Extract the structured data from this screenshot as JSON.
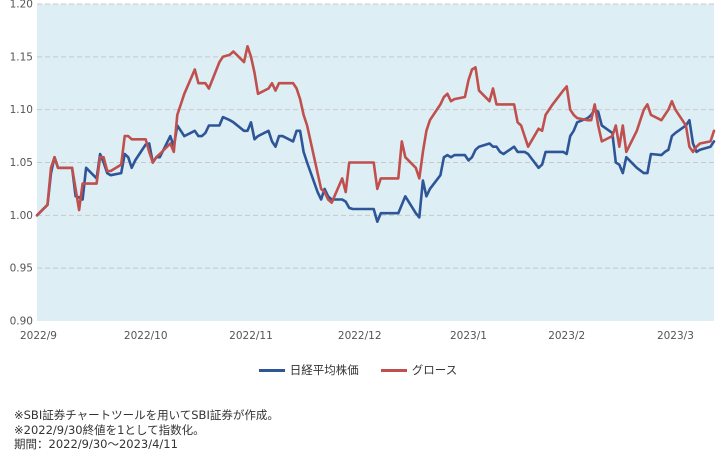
{
  "chart_data": {
    "type": "line",
    "ylim": [
      0.9,
      1.2
    ],
    "y_ticks": [
      "0.90",
      "0.95",
      "1.00",
      "1.05",
      "1.10",
      "1.15",
      "1.20"
    ],
    "x_tick_labels": [
      "2022/9",
      "2022/10",
      "2022/11",
      "2022/12",
      "2023/1",
      "2023/2",
      "2023/3"
    ],
    "x_range": [
      "2022-09-30",
      "2023-04-11"
    ],
    "x_ticks": [
      "2022-09-30",
      "2022-10-31",
      "2022-11-30",
      "2022-12-31",
      "2023-01-31",
      "2023-02-28",
      "2023-03-31"
    ],
    "grid": "horizontal dashed",
    "background": "#ddeef5",
    "legend_position": "bottom",
    "series": [
      {
        "name": "日経平均株価",
        "color": "#2e5597",
        "values": [
          [
            "2022-09-30",
            1.0
          ],
          [
            "2022-10-03",
            1.01
          ],
          [
            "2022-10-04",
            1.04
          ],
          [
            "2022-10-05",
            1.055
          ],
          [
            "2022-10-06",
            1.045
          ],
          [
            "2022-10-07",
            1.045
          ],
          [
            "2022-10-10",
            1.045
          ],
          [
            "2022-10-11",
            1.018
          ],
          [
            "2022-10-12",
            1.017
          ],
          [
            "2022-10-13",
            1.015
          ],
          [
            "2022-10-14",
            1.045
          ],
          [
            "2022-10-17",
            1.035
          ],
          [
            "2022-10-18",
            1.058
          ],
          [
            "2022-10-19",
            1.05
          ],
          [
            "2022-10-20",
            1.04
          ],
          [
            "2022-10-21",
            1.038
          ],
          [
            "2022-10-24",
            1.04
          ],
          [
            "2022-10-25",
            1.058
          ],
          [
            "2022-10-26",
            1.055
          ],
          [
            "2022-10-27",
            1.045
          ],
          [
            "2022-10-28",
            1.052
          ],
          [
            "2022-10-31",
            1.067
          ],
          [
            "2022-11-01",
            1.068
          ],
          [
            "2022-11-02",
            1.05
          ],
          [
            "2022-11-03",
            1.055
          ],
          [
            "2022-11-04",
            1.055
          ],
          [
            "2022-11-07",
            1.075
          ],
          [
            "2022-11-08",
            1.065
          ],
          [
            "2022-11-09",
            1.085
          ],
          [
            "2022-11-10",
            1.08
          ],
          [
            "2022-11-11",
            1.075
          ],
          [
            "2022-11-14",
            1.08
          ],
          [
            "2022-11-15",
            1.075
          ],
          [
            "2022-11-16",
            1.075
          ],
          [
            "2022-11-17",
            1.078
          ],
          [
            "2022-11-18",
            1.085
          ],
          [
            "2022-11-21",
            1.085
          ],
          [
            "2022-11-22",
            1.093
          ],
          [
            "2022-11-24",
            1.09
          ],
          [
            "2022-11-25",
            1.088
          ],
          [
            "2022-11-28",
            1.08
          ],
          [
            "2022-11-29",
            1.08
          ],
          [
            "2022-11-30",
            1.088
          ],
          [
            "2022-12-01",
            1.072
          ],
          [
            "2022-12-02",
            1.075
          ],
          [
            "2022-12-05",
            1.08
          ],
          [
            "2022-12-06",
            1.07
          ],
          [
            "2022-12-07",
            1.065
          ],
          [
            "2022-12-08",
            1.075
          ],
          [
            "2022-12-09",
            1.075
          ],
          [
            "2022-12-12",
            1.07
          ],
          [
            "2022-12-13",
            1.08
          ],
          [
            "2022-12-14",
            1.08
          ],
          [
            "2022-12-15",
            1.06
          ],
          [
            "2022-12-16",
            1.05
          ],
          [
            "2022-12-19",
            1.022
          ],
          [
            "2022-12-20",
            1.015
          ],
          [
            "2022-12-21",
            1.025
          ],
          [
            "2022-12-22",
            1.018
          ],
          [
            "2022-12-23",
            1.015
          ],
          [
            "2022-12-26",
            1.015
          ],
          [
            "2022-12-27",
            1.013
          ],
          [
            "2022-12-28",
            1.007
          ],
          [
            "2022-12-29",
            1.006
          ],
          [
            "2022-12-30",
            1.006
          ],
          [
            "2023-01-04",
            1.006
          ],
          [
            "2023-01-05",
            0.994
          ],
          [
            "2023-01-06",
            1.002
          ],
          [
            "2023-01-10",
            1.002
          ],
          [
            "2023-01-11",
            1.002
          ],
          [
            "2023-01-12",
            1.01
          ],
          [
            "2023-01-13",
            1.018
          ],
          [
            "2023-01-16",
            1.002
          ],
          [
            "2023-01-17",
            0.998
          ],
          [
            "2023-01-18",
            1.033
          ],
          [
            "2023-01-19",
            1.018
          ],
          [
            "2023-01-20",
            1.025
          ],
          [
            "2023-01-23",
            1.038
          ],
          [
            "2023-01-24",
            1.055
          ],
          [
            "2023-01-25",
            1.057
          ],
          [
            "2023-01-26",
            1.055
          ],
          [
            "2023-01-27",
            1.057
          ],
          [
            "2023-01-30",
            1.057
          ],
          [
            "2023-01-31",
            1.052
          ],
          [
            "2023-02-01",
            1.055
          ],
          [
            "2023-02-02",
            1.062
          ],
          [
            "2023-02-03",
            1.065
          ],
          [
            "2023-02-06",
            1.068
          ],
          [
            "2023-02-07",
            1.065
          ],
          [
            "2023-02-08",
            1.065
          ],
          [
            "2023-02-09",
            1.06
          ],
          [
            "2023-02-10",
            1.058
          ],
          [
            "2023-02-13",
            1.065
          ],
          [
            "2023-02-14",
            1.06
          ],
          [
            "2023-02-15",
            1.06
          ],
          [
            "2023-02-16",
            1.06
          ],
          [
            "2023-02-17",
            1.058
          ],
          [
            "2023-02-20",
            1.045
          ],
          [
            "2023-02-21",
            1.048
          ],
          [
            "2023-02-22",
            1.06
          ],
          [
            "2023-02-24",
            1.06
          ],
          [
            "2023-02-27",
            1.06
          ],
          [
            "2023-02-28",
            1.058
          ],
          [
            "2023-03-01",
            1.075
          ],
          [
            "2023-03-02",
            1.08
          ],
          [
            "2023-03-03",
            1.088
          ],
          [
            "2023-03-06",
            1.092
          ],
          [
            "2023-03-07",
            1.095
          ],
          [
            "2023-03-08",
            1.1
          ],
          [
            "2023-03-09",
            1.098
          ],
          [
            "2023-03-10",
            1.085
          ],
          [
            "2023-03-13",
            1.078
          ],
          [
            "2023-03-14",
            1.05
          ],
          [
            "2023-03-15",
            1.048
          ],
          [
            "2023-03-16",
            1.04
          ],
          [
            "2023-03-17",
            1.055
          ],
          [
            "2023-03-20",
            1.045
          ],
          [
            "2023-03-22",
            1.04
          ],
          [
            "2023-03-23",
            1.04
          ],
          [
            "2023-03-24",
            1.058
          ],
          [
            "2023-03-27",
            1.057
          ],
          [
            "2023-03-28",
            1.06
          ],
          [
            "2023-03-29",
            1.062
          ],
          [
            "2023-03-30",
            1.075
          ],
          [
            "2023-03-31",
            1.078
          ],
          [
            "2023-04-03",
            1.085
          ],
          [
            "2023-04-04",
            1.09
          ],
          [
            "2023-04-05",
            1.068
          ],
          [
            "2023-04-06",
            1.06
          ],
          [
            "2023-04-07",
            1.062
          ],
          [
            "2023-04-10",
            1.065
          ],
          [
            "2023-04-11",
            1.07
          ]
        ]
      },
      {
        "name": "グロース",
        "color": "#c0504d",
        "values": [
          [
            "2022-09-30",
            1.0
          ],
          [
            "2022-10-03",
            1.01
          ],
          [
            "2022-10-04",
            1.045
          ],
          [
            "2022-10-05",
            1.055
          ],
          [
            "2022-10-06",
            1.045
          ],
          [
            "2022-10-07",
            1.045
          ],
          [
            "2022-10-10",
            1.045
          ],
          [
            "2022-10-11",
            1.025
          ],
          [
            "2022-10-12",
            1.005
          ],
          [
            "2022-10-13",
            1.03
          ],
          [
            "2022-10-14",
            1.03
          ],
          [
            "2022-10-17",
            1.03
          ],
          [
            "2022-10-18",
            1.055
          ],
          [
            "2022-10-19",
            1.055
          ],
          [
            "2022-10-20",
            1.042
          ],
          [
            "2022-10-21",
            1.042
          ],
          [
            "2022-10-24",
            1.048
          ],
          [
            "2022-10-25",
            1.075
          ],
          [
            "2022-10-26",
            1.075
          ],
          [
            "2022-10-27",
            1.072
          ],
          [
            "2022-10-28",
            1.072
          ],
          [
            "2022-10-31",
            1.072
          ],
          [
            "2022-11-01",
            1.06
          ],
          [
            "2022-11-02",
            1.05
          ],
          [
            "2022-11-03",
            1.055
          ],
          [
            "2022-11-04",
            1.058
          ],
          [
            "2022-11-07",
            1.068
          ],
          [
            "2022-11-08",
            1.06
          ],
          [
            "2022-11-09",
            1.095
          ],
          [
            "2022-11-10",
            1.105
          ],
          [
            "2022-11-11",
            1.115
          ],
          [
            "2022-11-14",
            1.138
          ],
          [
            "2022-11-15",
            1.125
          ],
          [
            "2022-11-16",
            1.125
          ],
          [
            "2022-11-17",
            1.125
          ],
          [
            "2022-11-18",
            1.12
          ],
          [
            "2022-11-21",
            1.145
          ],
          [
            "2022-11-22",
            1.15
          ],
          [
            "2022-11-24",
            1.152
          ],
          [
            "2022-11-25",
            1.155
          ],
          [
            "2022-11-28",
            1.145
          ],
          [
            "2022-11-29",
            1.16
          ],
          [
            "2022-11-30",
            1.15
          ],
          [
            "2022-12-01",
            1.135
          ],
          [
            "2022-12-02",
            1.115
          ],
          [
            "2022-12-05",
            1.12
          ],
          [
            "2022-12-06",
            1.125
          ],
          [
            "2022-12-07",
            1.118
          ],
          [
            "2022-12-08",
            1.125
          ],
          [
            "2022-12-09",
            1.125
          ],
          [
            "2022-12-12",
            1.125
          ],
          [
            "2022-12-13",
            1.12
          ],
          [
            "2022-12-14",
            1.11
          ],
          [
            "2022-12-15",
            1.095
          ],
          [
            "2022-12-16",
            1.085
          ],
          [
            "2022-12-19",
            1.04
          ],
          [
            "2022-12-20",
            1.025
          ],
          [
            "2022-12-21",
            1.022
          ],
          [
            "2022-12-22",
            1.015
          ],
          [
            "2022-12-23",
            1.012
          ],
          [
            "2022-12-26",
            1.035
          ],
          [
            "2022-12-27",
            1.022
          ],
          [
            "2022-12-28",
            1.05
          ],
          [
            "2022-12-29",
            1.05
          ],
          [
            "2022-12-30",
            1.05
          ],
          [
            "2023-01-04",
            1.05
          ],
          [
            "2023-01-05",
            1.025
          ],
          [
            "2023-01-06",
            1.035
          ],
          [
            "2023-01-10",
            1.035
          ],
          [
            "2023-01-11",
            1.035
          ],
          [
            "2023-01-12",
            1.07
          ],
          [
            "2023-01-13",
            1.055
          ],
          [
            "2023-01-16",
            1.045
          ],
          [
            "2023-01-17",
            1.035
          ],
          [
            "2023-01-18",
            1.06
          ],
          [
            "2023-01-19",
            1.08
          ],
          [
            "2023-01-20",
            1.09
          ],
          [
            "2023-01-23",
            1.105
          ],
          [
            "2023-01-24",
            1.112
          ],
          [
            "2023-01-25",
            1.115
          ],
          [
            "2023-01-26",
            1.108
          ],
          [
            "2023-01-27",
            1.11
          ],
          [
            "2023-01-30",
            1.112
          ],
          [
            "2023-01-31",
            1.128
          ],
          [
            "2023-02-01",
            1.138
          ],
          [
            "2023-02-02",
            1.14
          ],
          [
            "2023-02-03",
            1.118
          ],
          [
            "2023-02-06",
            1.108
          ],
          [
            "2023-02-07",
            1.12
          ],
          [
            "2023-02-08",
            1.105
          ],
          [
            "2023-02-09",
            1.105
          ],
          [
            "2023-02-10",
            1.105
          ],
          [
            "2023-02-13",
            1.105
          ],
          [
            "2023-02-14",
            1.088
          ],
          [
            "2023-02-15",
            1.085
          ],
          [
            "2023-02-16",
            1.075
          ],
          [
            "2023-02-17",
            1.065
          ],
          [
            "2023-02-20",
            1.082
          ],
          [
            "2023-02-21",
            1.08
          ],
          [
            "2023-02-22",
            1.095
          ],
          [
            "2023-02-24",
            1.105
          ],
          [
            "2023-02-27",
            1.118
          ],
          [
            "2023-02-28",
            1.122
          ],
          [
            "2023-03-01",
            1.1
          ],
          [
            "2023-03-02",
            1.095
          ],
          [
            "2023-03-03",
            1.092
          ],
          [
            "2023-03-06",
            1.09
          ],
          [
            "2023-03-07",
            1.09
          ],
          [
            "2023-03-08",
            1.105
          ],
          [
            "2023-03-09",
            1.085
          ],
          [
            "2023-03-10",
            1.07
          ],
          [
            "2023-03-13",
            1.075
          ],
          [
            "2023-03-14",
            1.085
          ],
          [
            "2023-03-15",
            1.065
          ],
          [
            "2023-03-16",
            1.085
          ],
          [
            "2023-03-17",
            1.06
          ],
          [
            "2023-03-20",
            1.08
          ],
          [
            "2023-03-22",
            1.1
          ],
          [
            "2023-03-23",
            1.105
          ],
          [
            "2023-03-24",
            1.095
          ],
          [
            "2023-03-27",
            1.09
          ],
          [
            "2023-03-28",
            1.095
          ],
          [
            "2023-03-29",
            1.1
          ],
          [
            "2023-03-30",
            1.108
          ],
          [
            "2023-03-31",
            1.1
          ],
          [
            "2023-04-03",
            1.085
          ],
          [
            "2023-04-04",
            1.065
          ],
          [
            "2023-04-05",
            1.06
          ],
          [
            "2023-04-06",
            1.065
          ],
          [
            "2023-04-07",
            1.068
          ],
          [
            "2023-04-10",
            1.07
          ],
          [
            "2023-04-11",
            1.08
          ]
        ]
      }
    ]
  },
  "notes": [
    "※SBI証券チャートツールを用いてSBI証券が作成。",
    "※2022/9/30終値を1として指数化。",
    "期間：2022/9/30〜2023/4/11"
  ]
}
